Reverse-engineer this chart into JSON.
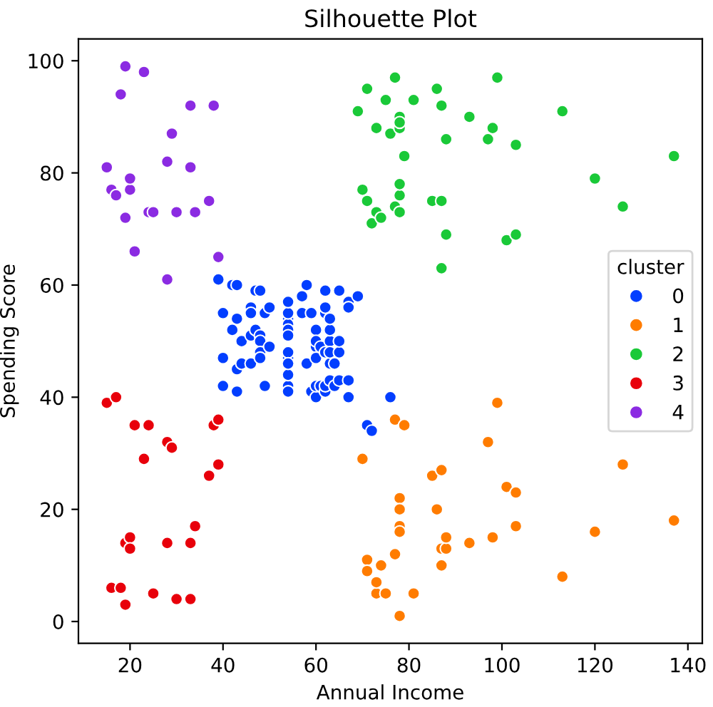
{
  "chart_data": {
    "type": "scatter",
    "title": "Silhouette Plot",
    "xlabel": "Annual Income",
    "ylabel": "Spending Score",
    "legend_title": "cluster",
    "legend": "right",
    "marker": "circle",
    "grid": false,
    "xlim": [
      8.9,
      143.1
    ],
    "ylim": [
      -3.9,
      103.9
    ],
    "xticks": [
      20,
      40,
      60,
      80,
      100,
      120,
      140
    ],
    "yticks": [
      0,
      20,
      40,
      60,
      80,
      100
    ],
    "series": [
      {
        "name": "0",
        "color": "#023eff",
        "x": [
          39,
          40,
          40,
          40,
          42,
          42,
          43,
          43,
          43,
          43,
          44,
          44,
          46,
          46,
          46,
          46,
          47,
          47,
          48,
          48,
          48,
          48,
          48,
          49,
          49,
          50,
          50,
          54,
          54,
          54,
          54,
          54,
          54,
          54,
          54,
          54,
          54,
          54,
          54,
          57,
          57,
          58,
          58,
          59,
          59,
          60,
          60,
          60,
          60,
          60,
          60,
          61,
          61,
          62,
          62,
          62,
          62,
          62,
          62,
          63,
          63,
          63,
          63,
          63,
          63,
          64,
          64,
          65,
          65,
          65,
          65,
          67,
          67,
          67,
          67,
          69,
          71,
          72,
          76
        ],
        "values": [
          61,
          55,
          47,
          42,
          52,
          60,
          54,
          60,
          45,
          41,
          50,
          46,
          51,
          46,
          56,
          55,
          52,
          59,
          51,
          59,
          50,
          48,
          47,
          55,
          42,
          49,
          56,
          47,
          54,
          53,
          48,
          52,
          42,
          51,
          55,
          41,
          44,
          57,
          46,
          58,
          55,
          60,
          46,
          55,
          41,
          49,
          40,
          42,
          52,
          47,
          50,
          42,
          49,
          41,
          48,
          59,
          55,
          56,
          42,
          50,
          46,
          43,
          48,
          52,
          54,
          42,
          46,
          48,
          50,
          43,
          59,
          43,
          57,
          56,
          40,
          58,
          35,
          34,
          40
        ]
      },
      {
        "name": "1",
        "color": "#ff7c00",
        "x": [
          70,
          71,
          71,
          73,
          73,
          74,
          75,
          77,
          77,
          78,
          78,
          78,
          78,
          78,
          79,
          81,
          85,
          86,
          87,
          87,
          87,
          88,
          88,
          93,
          97,
          98,
          99,
          101,
          103,
          103,
          113,
          120,
          126,
          137
        ],
        "values": [
          29,
          11,
          9,
          5,
          7,
          10,
          5,
          12,
          36,
          22,
          17,
          20,
          16,
          1,
          35,
          5,
          26,
          20,
          27,
          13,
          10,
          13,
          15,
          14,
          32,
          15,
          39,
          24,
          17,
          23,
          8,
          16,
          28,
          18
        ]
      },
      {
        "name": "2",
        "color": "#1ac938",
        "x": [
          69,
          70,
          71,
          71,
          72,
          73,
          73,
          74,
          75,
          76,
          77,
          77,
          78,
          78,
          78,
          78,
          78,
          78,
          79,
          81,
          85,
          86,
          87,
          87,
          87,
          88,
          88,
          93,
          97,
          98,
          99,
          101,
          103,
          103,
          113,
          120,
          126,
          137
        ],
        "values": [
          91,
          77,
          95,
          75,
          71,
          88,
          73,
          72,
          93,
          87,
          97,
          74,
          90,
          88,
          76,
          89,
          78,
          73,
          83,
          93,
          75,
          95,
          63,
          75,
          92,
          86,
          69,
          90,
          86,
          88,
          97,
          68,
          85,
          69,
          91,
          79,
          74,
          83
        ]
      },
      {
        "name": "3",
        "color": "#e8000b",
        "x": [
          15,
          16,
          17,
          18,
          19,
          19,
          20,
          20,
          21,
          23,
          24,
          25,
          28,
          28,
          29,
          30,
          33,
          33,
          34,
          37,
          38,
          39,
          39
        ],
        "values": [
          39,
          6,
          40,
          6,
          3,
          14,
          15,
          13,
          35,
          29,
          35,
          5,
          14,
          32,
          31,
          4,
          4,
          14,
          17,
          26,
          35,
          36,
          28
        ]
      },
      {
        "name": "4",
        "color": "#8b2be2",
        "x": [
          15,
          16,
          17,
          18,
          19,
          19,
          20,
          20,
          21,
          23,
          24,
          25,
          28,
          28,
          29,
          30,
          33,
          33,
          34,
          37,
          38,
          39
        ],
        "values": [
          81,
          77,
          76,
          94,
          72,
          99,
          77,
          79,
          66,
          98,
          73,
          73,
          82,
          61,
          87,
          73,
          92,
          81,
          73,
          75,
          92,
          65
        ]
      }
    ]
  }
}
